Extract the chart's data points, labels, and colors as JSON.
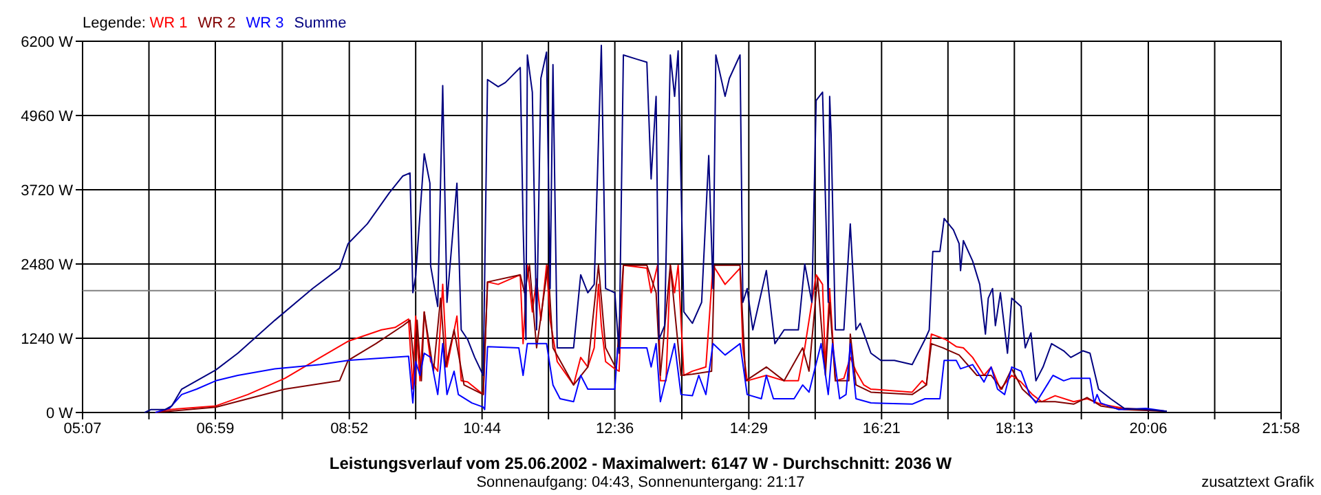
{
  "chart_data": {
    "type": "line",
    "title": "Leistungsverlauf vom 25.06.2002 - Maximalwert: 6147 W - Durchschnitt: 2036 W",
    "subtitle": "Sonnenaufgang: 04:43, Sonnenuntergang: 21:17",
    "annotations": [
      "zusatztext Grafik"
    ],
    "legend_title": "Legende:",
    "legend": "top left",
    "grid": true,
    "line_style": "solid",
    "xlim": [
      5.1167,
      21.9667
    ],
    "ylim": [
      0,
      6200
    ],
    "xticks": [
      {
        "value": 5.1167,
        "label": "05:07"
      },
      {
        "value": 6.05,
        "label": null
      },
      {
        "value": 6.9833,
        "label": "06:59"
      },
      {
        "value": 7.925,
        "label": null
      },
      {
        "value": 8.8667,
        "label": "08:52"
      },
      {
        "value": 9.8,
        "label": null
      },
      {
        "value": 10.7333,
        "label": "10:44"
      },
      {
        "value": 11.6667,
        "label": null
      },
      {
        "value": 12.6,
        "label": "12:36"
      },
      {
        "value": 13.5417,
        "label": null
      },
      {
        "value": 14.4833,
        "label": "14:29"
      },
      {
        "value": 15.4167,
        "label": null
      },
      {
        "value": 16.35,
        "label": "16:21"
      },
      {
        "value": 17.2833,
        "label": null
      },
      {
        "value": 18.2167,
        "label": "18:13"
      },
      {
        "value": 19.1583,
        "label": null
      },
      {
        "value": 20.1,
        "label": "20:06"
      },
      {
        "value": 21.0333,
        "label": null
      },
      {
        "value": 21.9667,
        "label": "21:58"
      }
    ],
    "yticks": [
      {
        "value": 0,
        "label": "0 W"
      },
      {
        "value": 1240,
        "label": "1240 W"
      },
      {
        "value": 2480,
        "label": "2480 W"
      },
      {
        "value": 3720,
        "label": "3720 W"
      },
      {
        "value": 4960,
        "label": "4960 W"
      },
      {
        "value": 6200,
        "label": "6200 W"
      }
    ],
    "ref_lines": [
      {
        "axis": "y",
        "value": 2036,
        "color": "#808080"
      }
    ],
    "series": [
      {
        "name": "WR 1",
        "color": "#ff0000",
        "x": [
          6.14,
          6.34,
          6.99,
          7.44,
          7.96,
          8.46,
          8.85,
          9.32,
          9.51,
          9.7,
          9.76,
          9.8,
          9.86,
          9.92,
          10.01,
          10.11,
          10.18,
          10.24,
          10.38,
          10.44,
          10.53,
          10.75,
          10.81,
          10.96,
          11.27,
          11.31,
          11.37,
          11.44,
          11.5,
          11.56,
          11.64,
          11.69,
          11.79,
          12.02,
          12.12,
          12.22,
          12.31,
          12.37,
          12.41,
          12.47,
          12.6,
          12.66,
          12.72,
          13.05,
          13.11,
          13.2,
          13.24,
          13.32,
          13.38,
          13.44,
          13.49,
          13.57,
          13.69,
          13.88,
          13.98,
          14.15,
          14.36,
          14.4,
          14.46,
          14.73,
          14.98,
          15.18,
          15.27,
          15.43,
          15.52,
          15.56,
          15.62,
          15.7,
          15.82,
          15.91,
          15.99,
          16.1,
          16.2,
          16.78,
          16.92,
          16.98,
          17.05,
          17.25,
          17.4,
          17.5,
          17.63,
          17.79,
          17.89,
          18.02,
          18.18,
          18.31,
          18.47,
          18.6,
          18.79,
          19.05,
          19.24,
          19.43,
          19.76,
          20.07,
          20.36
        ],
        "values": [
          0,
          50,
          110,
          300,
          570,
          920,
          1190,
          1380,
          1420,
          1560,
          390,
          1610,
          530,
          1680,
          850,
          690,
          2140,
          760,
          1610,
          530,
          510,
          300,
          2180,
          2140,
          2300,
          1150,
          2460,
          1680,
          2230,
          1540,
          2460,
          1540,
          850,
          460,
          920,
          760,
          1080,
          2140,
          1450,
          850,
          730,
          690,
          2460,
          2410,
          2000,
          2460,
          530,
          530,
          2460,
          2000,
          2460,
          620,
          690,
          760,
          2460,
          2140,
          2410,
          1080,
          530,
          620,
          530,
          530,
          1080,
          2300,
          2140,
          760,
          2070,
          530,
          570,
          920,
          690,
          460,
          390,
          340,
          530,
          460,
          1310,
          1220,
          1100,
          1080,
          920,
          620,
          760,
          390,
          620,
          510,
          300,
          180,
          280,
          180,
          230,
          140,
          70,
          50,
          20
        ]
      },
      {
        "name": "WR 2",
        "color": "#800000",
        "x": [
          6.14,
          6.99,
          7.96,
          8.73,
          8.85,
          9.24,
          9.62,
          9.72,
          9.8,
          9.82,
          9.88,
          9.92,
          10.05,
          10.15,
          10.22,
          10.34,
          10.48,
          10.75,
          10.81,
          11.27,
          11.33,
          11.4,
          11.5,
          11.66,
          11.73,
          12.02,
          12.22,
          12.37,
          12.47,
          12.62,
          12.72,
          13.05,
          13.18,
          13.24,
          13.38,
          13.53,
          13.69,
          13.96,
          14.0,
          14.36,
          14.44,
          14.73,
          14.98,
          15.24,
          15.33,
          15.45,
          15.56,
          15.62,
          15.7,
          15.89,
          15.91,
          15.99,
          16.2,
          16.78,
          16.98,
          17.05,
          17.21,
          17.44,
          17.69,
          17.89,
          18.04,
          18.18,
          18.33,
          18.52,
          18.79,
          19.05,
          19.24,
          19.43,
          19.76,
          20.36
        ],
        "values": [
          0,
          90,
          390,
          530,
          870,
          1150,
          1450,
          1540,
          460,
          1540,
          530,
          1680,
          690,
          1910,
          760,
          1380,
          460,
          300,
          2180,
          2300,
          2000,
          2460,
          1080,
          2460,
          1080,
          460,
          760,
          2460,
          1080,
          730,
          2460,
          2460,
          2000,
          620,
          2460,
          620,
          640,
          690,
          2460,
          2460,
          530,
          760,
          530,
          1080,
          690,
          2250,
          620,
          1840,
          530,
          530,
          1310,
          460,
          340,
          300,
          460,
          1150,
          1080,
          960,
          620,
          620,
          390,
          730,
          390,
          180,
          180,
          140,
          250,
          110,
          50,
          20
        ]
      },
      {
        "name": "WR 3",
        "color": "#0000ff",
        "x": [
          6.14,
          6.34,
          6.51,
          6.72,
          6.99,
          7.3,
          7.82,
          8.46,
          8.85,
          9.7,
          9.76,
          9.8,
          9.86,
          9.92,
          10.01,
          10.11,
          10.18,
          10.24,
          10.34,
          10.4,
          10.59,
          10.75,
          10.77,
          10.81,
          11.25,
          11.31,
          11.37,
          11.64,
          11.73,
          11.83,
          12.02,
          12.12,
          12.22,
          12.6,
          12.64,
          13.05,
          13.11,
          13.18,
          13.24,
          13.44,
          13.53,
          13.69,
          13.78,
          13.88,
          13.98,
          14.15,
          14.36,
          14.46,
          14.66,
          14.73,
          14.83,
          15.12,
          15.24,
          15.33,
          15.5,
          15.6,
          15.66,
          15.76,
          15.85,
          15.91,
          15.99,
          16.2,
          16.78,
          16.96,
          17.17,
          17.23,
          17.4,
          17.46,
          17.63,
          17.79,
          17.89,
          17.98,
          18.08,
          18.18,
          18.31,
          18.43,
          18.52,
          18.76,
          18.91,
          19.01,
          19.28,
          19.34,
          19.38,
          19.43,
          19.68,
          20.07,
          20.36
        ],
        "values": [
          0,
          70,
          300,
          390,
          530,
          620,
          730,
          800,
          870,
          940,
          160,
          850,
          620,
          990,
          920,
          300,
          1150,
          300,
          690,
          300,
          160,
          90,
          50,
          1100,
          1080,
          620,
          1150,
          1150,
          460,
          230,
          180,
          620,
          390,
          390,
          1080,
          1080,
          760,
          1150,
          180,
          1150,
          300,
          280,
          620,
          300,
          1150,
          960,
          1150,
          300,
          230,
          620,
          230,
          230,
          460,
          340,
          1150,
          300,
          1150,
          230,
          300,
          1150,
          230,
          160,
          140,
          230,
          230,
          870,
          870,
          730,
          800,
          510,
          760,
          390,
          300,
          760,
          690,
          300,
          160,
          620,
          530,
          570,
          570,
          160,
          300,
          160,
          50,
          70,
          20
        ]
      },
      {
        "name": "Summe",
        "color": "#000080",
        "x": [
          5.99,
          6.08,
          6.28,
          6.37,
          6.51,
          6.72,
          6.99,
          7.3,
          7.82,
          8.35,
          8.73,
          8.85,
          9.12,
          9.43,
          9.62,
          9.72,
          9.76,
          9.8,
          9.92,
          10.0,
          10.01,
          10.11,
          10.18,
          10.24,
          10.38,
          10.44,
          10.53,
          10.63,
          10.75,
          10.81,
          10.96,
          11.06,
          11.27,
          11.31,
          11.35,
          11.37,
          11.44,
          11.5,
          11.56,
          11.64,
          11.69,
          11.73,
          11.79,
          12.02,
          12.12,
          12.22,
          12.31,
          12.41,
          12.47,
          12.6,
          12.66,
          12.72,
          12.91,
          13.05,
          13.11,
          13.18,
          13.22,
          13.3,
          13.38,
          13.44,
          13.49,
          13.57,
          13.69,
          13.82,
          13.92,
          13.98,
          14.02,
          14.15,
          14.21,
          14.36,
          14.4,
          14.46,
          14.54,
          14.73,
          14.85,
          14.98,
          15.18,
          15.27,
          15.37,
          15.43,
          15.52,
          15.6,
          15.62,
          15.64,
          15.7,
          15.82,
          15.91,
          15.99,
          16.05,
          16.2,
          16.34,
          16.53,
          16.78,
          16.96,
          17.02,
          17.07,
          17.17,
          17.23,
          17.36,
          17.44,
          17.46,
          17.5,
          17.63,
          17.73,
          17.81,
          17.85,
          17.91,
          17.95,
          18.02,
          18.12,
          18.18,
          18.31,
          18.37,
          18.45,
          18.52,
          18.62,
          18.74,
          18.91,
          19.01,
          19.18,
          19.28,
          19.4,
          19.57,
          19.76,
          20.07,
          20.36
        ],
        "values": [
          0,
          50,
          50,
          110,
          390,
          530,
          710,
          990,
          1540,
          2070,
          2410,
          2820,
          3150,
          3670,
          3950,
          4000,
          2000,
          2280,
          4320,
          3830,
          2450,
          1770,
          5460,
          1840,
          3830,
          1380,
          1220,
          920,
          620,
          5560,
          5440,
          5510,
          5760,
          3150,
          1220,
          5970,
          5350,
          1380,
          5580,
          6020,
          2070,
          5810,
          1080,
          1080,
          2300,
          2000,
          2140,
          6130,
          2070,
          2000,
          990,
          5970,
          5900,
          5850,
          3900,
          5280,
          1220,
          1450,
          5970,
          5280,
          6040,
          1680,
          1490,
          1840,
          4290,
          2070,
          5970,
          5280,
          5580,
          5970,
          1840,
          2070,
          1380,
          2370,
          1150,
          1380,
          1380,
          2480,
          1840,
          5210,
          5350,
          1840,
          5280,
          4660,
          1380,
          1380,
          3150,
          1380,
          1490,
          990,
          870,
          870,
          800,
          1220,
          1380,
          2690,
          2690,
          3240,
          3050,
          2820,
          2370,
          2870,
          2530,
          2140,
          1310,
          1910,
          2070,
          1450,
          2000,
          990,
          1910,
          1770,
          1080,
          1330,
          530,
          760,
          1150,
          1030,
          920,
          1030,
          990,
          390,
          230,
          70,
          50,
          20
        ]
      }
    ]
  }
}
